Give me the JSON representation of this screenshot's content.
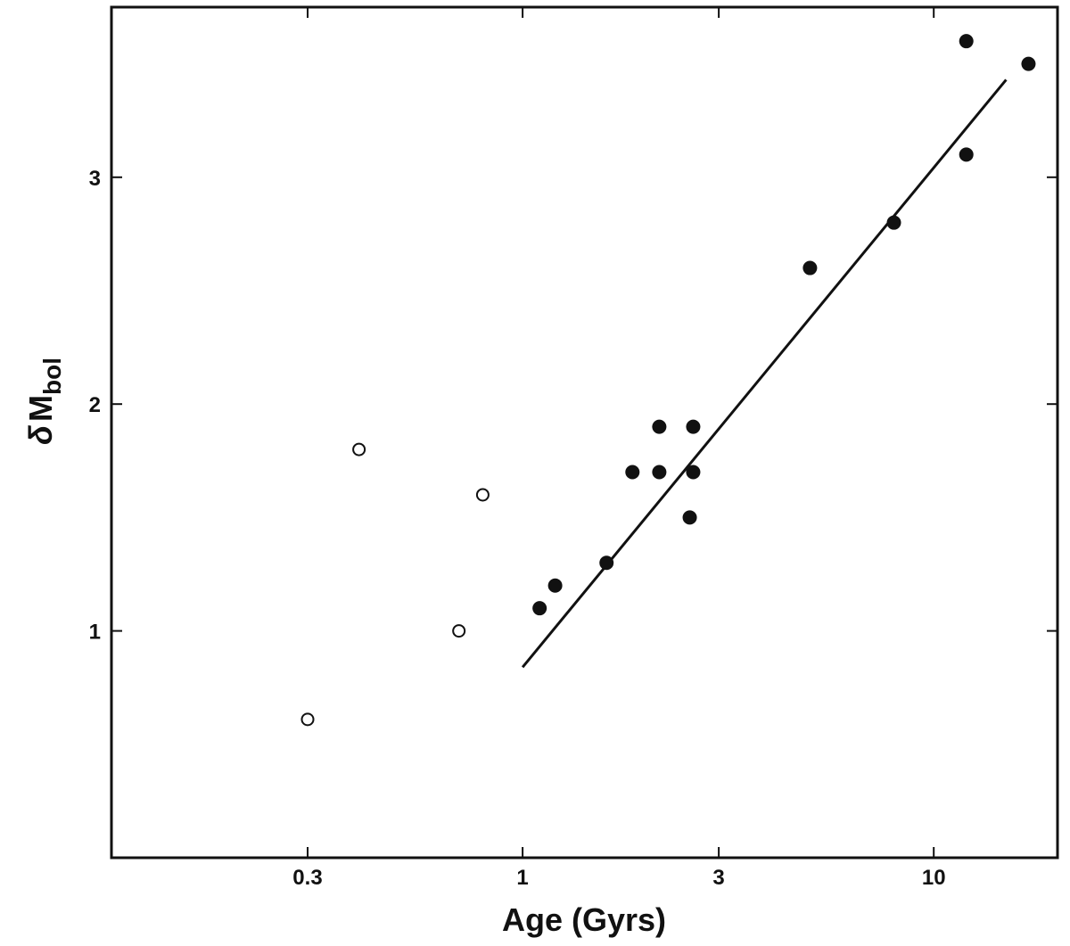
{
  "chart_data": {
    "type": "scatter",
    "title": "",
    "xlabel": "Age (Gyrs)",
    "ylabel_symbol": "δ",
    "ylabel_main": "M",
    "ylabel_sub": "bol",
    "x_scale": "log",
    "xlim": [
      0.1,
      20
    ],
    "ylim": [
      0,
      3.75
    ],
    "x_ticks": [
      {
        "value": 0.3,
        "label": "0.3"
      },
      {
        "value": 1,
        "label": "1"
      },
      {
        "value": 3,
        "label": "3"
      },
      {
        "value": 10,
        "label": "10"
      }
    ],
    "y_ticks": [
      {
        "value": 1,
        "label": "1"
      },
      {
        "value": 2,
        "label": "2"
      },
      {
        "value": 3,
        "label": "3"
      }
    ],
    "grid": false,
    "legend": false,
    "series": [
      {
        "marker": "open-circle",
        "color": "#111111",
        "points": [
          {
            "x": 0.3,
            "y": 0.61
          },
          {
            "x": 0.4,
            "y": 1.8
          },
          {
            "x": 0.7,
            "y": 1.0
          },
          {
            "x": 0.8,
            "y": 1.6
          }
        ]
      },
      {
        "marker": "filled-circle",
        "color": "#111111",
        "points": [
          {
            "x": 1.1,
            "y": 1.1
          },
          {
            "x": 1.2,
            "y": 1.2
          },
          {
            "x": 1.6,
            "y": 1.3
          },
          {
            "x": 1.85,
            "y": 1.7
          },
          {
            "x": 2.15,
            "y": 1.7
          },
          {
            "x": 2.15,
            "y": 1.9
          },
          {
            "x": 2.55,
            "y": 1.5
          },
          {
            "x": 2.6,
            "y": 1.7
          },
          {
            "x": 2.6,
            "y": 1.9
          },
          {
            "x": 5.0,
            "y": 2.6
          },
          {
            "x": 8.0,
            "y": 2.8
          },
          {
            "x": 12.0,
            "y": 3.1
          },
          {
            "x": 12.0,
            "y": 3.6
          },
          {
            "x": 17.0,
            "y": 3.5
          }
        ]
      }
    ],
    "fit_line": {
      "x": [
        1.0,
        15.0
      ],
      "y": [
        0.84,
        3.43
      ]
    }
  }
}
